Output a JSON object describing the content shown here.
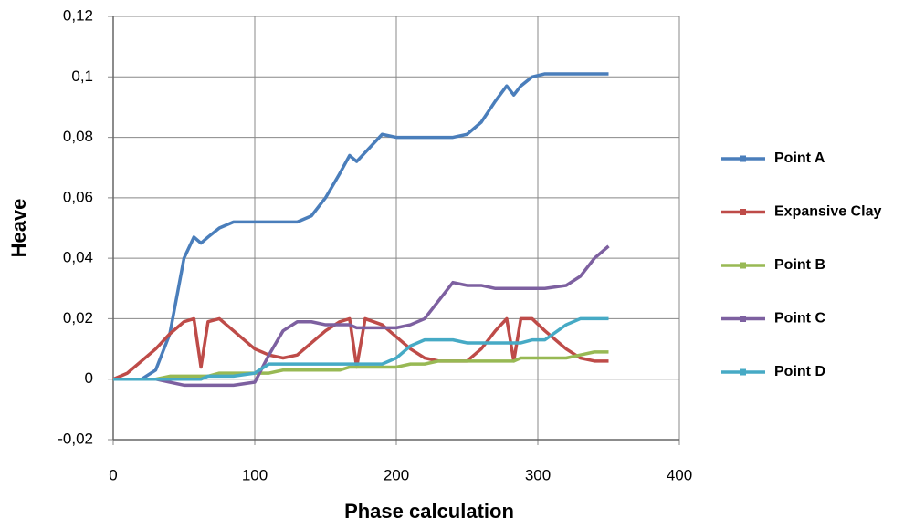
{
  "chart_data": {
    "type": "line",
    "x_label": "Phase calculation",
    "y_label": "Heave",
    "xlim": [
      0,
      400
    ],
    "xticks": [
      0,
      100,
      200,
      300,
      400
    ],
    "ylim": [
      -0.02,
      0.12
    ],
    "yticks": [
      {
        "value": -0.02,
        "label": "-0,02"
      },
      0,
      {
        "value": 0.02,
        "label": "0,02"
      },
      {
        "value": 0.04,
        "label": "0,04"
      },
      {
        "value": 0.06,
        "label": "0,06"
      },
      {
        "value": 0.08,
        "label": "0,08"
      },
      {
        "value": 0.1,
        "label": "0,1"
      },
      {
        "value": 0.12,
        "label": "0,12"
      }
    ],
    "grid": true,
    "legend": "right",
    "x": [
      0,
      10,
      20,
      30,
      40,
      50,
      57,
      62,
      67,
      75,
      85,
      100,
      110,
      120,
      130,
      140,
      150,
      160,
      167,
      172,
      178,
      190,
      200,
      210,
      220,
      230,
      240,
      250,
      260,
      270,
      278,
      283,
      288,
      296,
      305,
      320,
      330,
      340,
      350
    ],
    "series": [
      {
        "name": "Point A",
        "color": "#4a7ebb",
        "values": [
          0,
          0,
          0,
          0.003,
          0.015,
          0.04,
          0.047,
          0.045,
          0.047,
          0.05,
          0.052,
          0.052,
          0.052,
          0.052,
          0.052,
          0.054,
          0.06,
          0.068,
          0.074,
          0.072,
          0.075,
          0.081,
          0.08,
          0.08,
          0.08,
          0.08,
          0.08,
          0.081,
          0.085,
          0.092,
          0.097,
          0.094,
          0.097,
          0.1,
          0.101,
          0.101,
          0.101,
          0.101,
          0.101
        ]
      },
      {
        "name": "Expansive Clay",
        "color": "#be4b48",
        "values": [
          0,
          0.002,
          0.006,
          0.01,
          0.015,
          0.019,
          0.02,
          0.004,
          0.019,
          0.02,
          0.016,
          0.01,
          0.008,
          0.007,
          0.008,
          0.012,
          0.016,
          0.019,
          0.02,
          0.004,
          0.02,
          0.018,
          0.014,
          0.01,
          0.007,
          0.006,
          0.006,
          0.006,
          0.01,
          0.016,
          0.02,
          0.006,
          0.02,
          0.02,
          0.016,
          0.01,
          0.007,
          0.006,
          0.006
        ]
      },
      {
        "name": "Point B",
        "color": "#98b954",
        "values": [
          0,
          0,
          0,
          0,
          0.001,
          0.001,
          0.001,
          0.001,
          0.001,
          0.002,
          0.002,
          0.002,
          0.002,
          0.003,
          0.003,
          0.003,
          0.003,
          0.003,
          0.004,
          0.004,
          0.004,
          0.004,
          0.004,
          0.005,
          0.005,
          0.006,
          0.006,
          0.006,
          0.006,
          0.006,
          0.006,
          0.006,
          0.007,
          0.007,
          0.007,
          0.007,
          0.008,
          0.009,
          0.009
        ]
      },
      {
        "name": "Point C",
        "color": "#7d60a0",
        "values": [
          0,
          0,
          0,
          0,
          -0.001,
          -0.002,
          -0.002,
          -0.002,
          -0.002,
          -0.002,
          -0.002,
          -0.001,
          0.008,
          0.016,
          0.019,
          0.019,
          0.018,
          0.018,
          0.018,
          0.017,
          0.017,
          0.017,
          0.017,
          0.018,
          0.02,
          0.026,
          0.032,
          0.031,
          0.031,
          0.03,
          0.03,
          0.03,
          0.03,
          0.03,
          0.03,
          0.031,
          0.034,
          0.04,
          0.044
        ]
      },
      {
        "name": "Point D",
        "color": "#46aac5",
        "values": [
          0,
          0,
          0,
          0,
          0,
          0,
          0,
          0,
          0.001,
          0.001,
          0.001,
          0.002,
          0.005,
          0.005,
          0.005,
          0.005,
          0.005,
          0.005,
          0.005,
          0.005,
          0.005,
          0.005,
          0.007,
          0.011,
          0.013,
          0.013,
          0.013,
          0.012,
          0.012,
          0.012,
          0.012,
          0.012,
          0.012,
          0.013,
          0.013,
          0.018,
          0.02,
          0.02,
          0.02
        ]
      }
    ]
  }
}
